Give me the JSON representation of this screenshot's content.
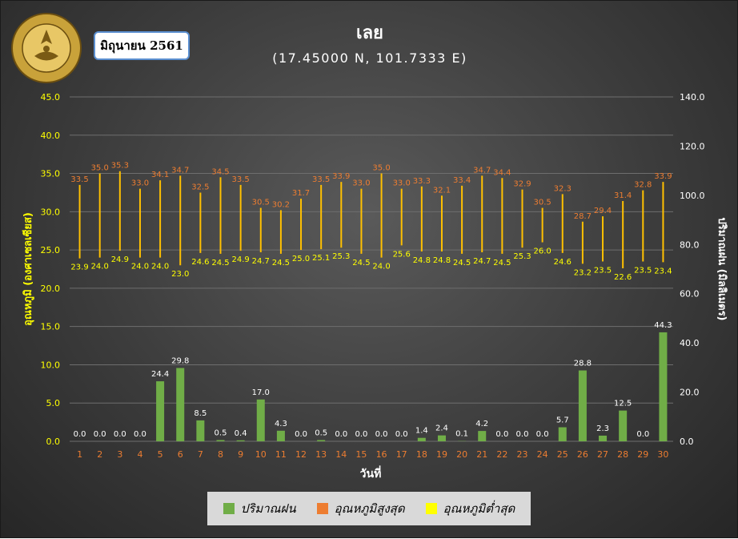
{
  "header": {
    "badge": "มิถุนายน 2561",
    "title": "เลย",
    "subtitle": "(17.45000 N, 101.7333 E)"
  },
  "logo": {
    "name": "meteorological-department-seal",
    "text_top": "กรมอุตุนิยมวิทยา",
    "text_bottom": "METEOROLOGICAL DEPARTMENT"
  },
  "legend": {
    "rain": "ปริมาณฝน",
    "tmax": "อุณหภูมิสูงสุด",
    "tmin": "อุณหภูมิต่ำสุด"
  },
  "colors": {
    "rain": "#70ad47",
    "tmax": "#ed7d31",
    "tmin": "#ffff00",
    "range_line": "#ffc000",
    "max_label": "#ed7d31",
    "min_label": "#ffff00",
    "left_axis": "#ffff00",
    "right_axis": "#ffffff",
    "x_tick": "#ed7d31"
  },
  "chart_data": {
    "type": "bar+range",
    "xlabel": "วันที่",
    "ylabel_left": "อุณหภูมิ (องศาเซลเซียส)",
    "ylabel_right": "ปริมาณฝน (มิลลิเมตร)",
    "left_axis": {
      "min": 0,
      "max": 45,
      "step": 5
    },
    "right_axis": {
      "min": 0,
      "max": 140,
      "step": 20
    },
    "grid": true,
    "legend_position": "bottom",
    "x": [
      1,
      2,
      3,
      4,
      5,
      6,
      7,
      8,
      9,
      10,
      11,
      12,
      13,
      14,
      15,
      16,
      17,
      18,
      19,
      20,
      21,
      22,
      23,
      24,
      25,
      26,
      27,
      28,
      29,
      30
    ],
    "series": [
      {
        "name": "ปริมาณฝน",
        "axis": "right",
        "type": "bar",
        "values": [
          0.0,
          0.0,
          0.0,
          0.0,
          24.4,
          29.8,
          8.5,
          0.5,
          0.4,
          17.0,
          4.3,
          0.0,
          0.5,
          0.0,
          0.0,
          0.0,
          0.0,
          1.4,
          2.4,
          0.1,
          4.2,
          0.0,
          0.0,
          0.0,
          5.7,
          28.8,
          2.3,
          12.5,
          0.0,
          44.3
        ]
      },
      {
        "name": "อุณหภูมิสูงสุด",
        "axis": "left",
        "type": "range-high",
        "values": [
          33.5,
          35.0,
          35.3,
          33.0,
          34.1,
          34.7,
          32.5,
          34.5,
          33.5,
          30.5,
          30.2,
          31.7,
          33.5,
          33.9,
          33.0,
          35.0,
          33.0,
          33.3,
          32.1,
          33.4,
          34.7,
          34.4,
          32.9,
          30.5,
          32.3,
          28.7,
          29.4,
          31.4,
          32.8,
          33.9
        ]
      },
      {
        "name": "อุณหภูมิต่ำสุด",
        "axis": "left",
        "type": "range-low",
        "values": [
          23.9,
          24.0,
          24.9,
          24.0,
          24.0,
          23.0,
          24.6,
          24.5,
          24.9,
          24.7,
          24.5,
          25.0,
          25.1,
          25.3,
          24.5,
          24.0,
          25.6,
          24.8,
          24.8,
          24.5,
          24.7,
          24.5,
          25.3,
          26.0,
          24.6,
          23.2,
          23.5,
          22.6,
          23.5,
          23.4
        ]
      }
    ]
  }
}
